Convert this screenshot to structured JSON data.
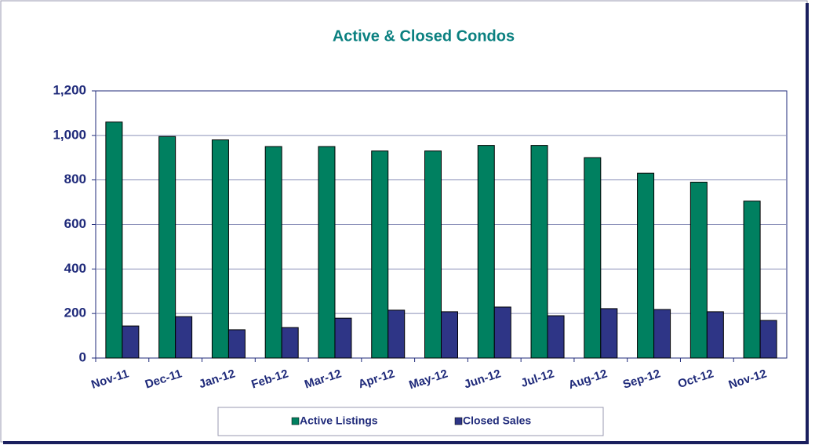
{
  "chart_data": {
    "type": "bar",
    "title": "Active & Closed Condos",
    "categories": [
      "Nov-11",
      "Dec-11",
      "Jan-12",
      "Feb-12",
      "Mar-12",
      "Apr-12",
      "May-12",
      "Jun-12",
      "Jul-12",
      "Aug-12",
      "Sep-12",
      "Oct-12",
      "Nov-12"
    ],
    "series": [
      {
        "name": "Active Listings",
        "color": "#008060",
        "values": [
          1060,
          995,
          980,
          950,
          950,
          930,
          930,
          955,
          955,
          900,
          830,
          790,
          705
        ]
      },
      {
        "name": "Closed Sales",
        "color": "#2e3586",
        "values": [
          144,
          186,
          127,
          137,
          179,
          215,
          208,
          229,
          190,
          222,
          218,
          208,
          169
        ]
      }
    ],
    "ylim": [
      0,
      1200
    ],
    "yticks": [
      0,
      200,
      400,
      600,
      800,
      {
        "value": 1000,
        "label": "1,000"
      },
      {
        "value": 1200,
        "label": "1,200"
      }
    ],
    "grid": true,
    "legend": "bottom"
  }
}
